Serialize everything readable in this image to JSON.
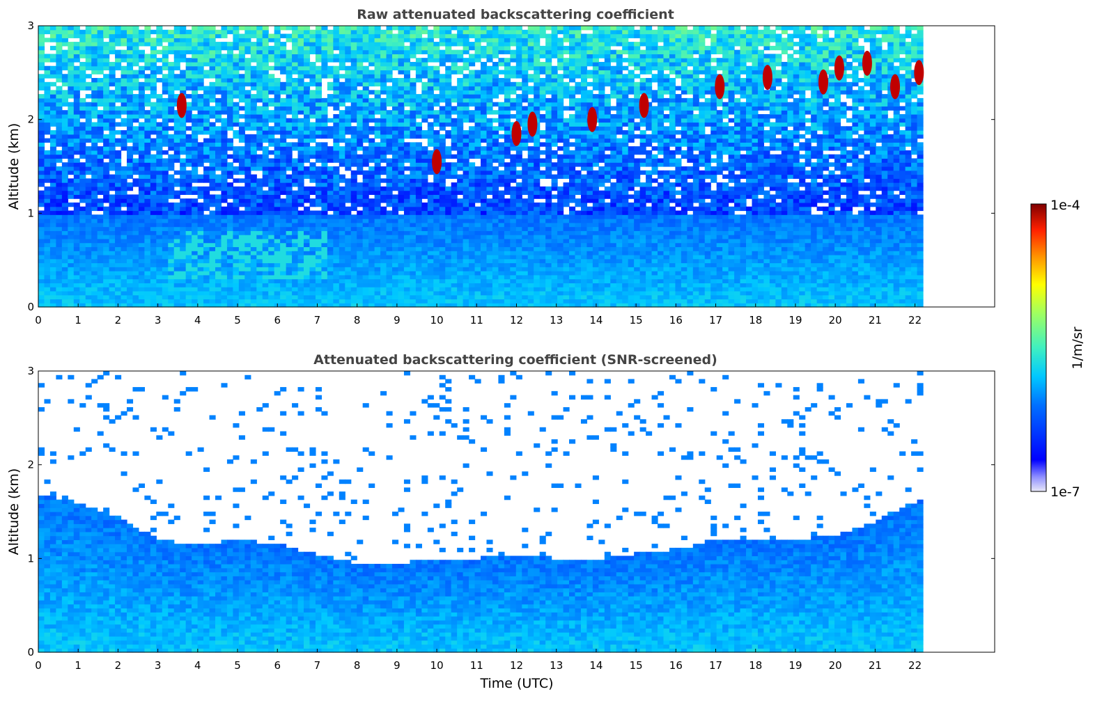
{
  "chart_data": [
    {
      "type": "heatmap",
      "title": "Raw attenuated backscattering coefficient",
      "xlabel": "",
      "ylabel": "Altitude (km)",
      "xlim": [
        0,
        24
      ],
      "ylim": [
        0,
        3
      ],
      "data_extent_hours": [
        0,
        22.2
      ],
      "xticks": [
        "0",
        "1",
        "2",
        "3",
        "4",
        "5",
        "6",
        "7",
        "8",
        "9",
        "10",
        "11",
        "12",
        "13",
        "14",
        "15",
        "16",
        "17",
        "18",
        "19",
        "20",
        "21",
        "22"
      ],
      "yticks": [
        "0",
        "1",
        "2",
        "3"
      ],
      "colormap": "jet",
      "color_scale": "log",
      "clim": [
        "1e-7",
        "1e-4"
      ],
      "features": {
        "boundary_layer_top_km": 1.0,
        "aerosol_plume": {
          "time_range_hours": [
            3.2,
            7.2
          ],
          "altitude_range_km": [
            0.3,
            0.8
          ]
        },
        "clouds": [
          {
            "time": 3.6,
            "alt": 2.15
          },
          {
            "time": 10.0,
            "alt": 1.55
          },
          {
            "time": 12.0,
            "alt": 1.85
          },
          {
            "time": 12.4,
            "alt": 1.95
          },
          {
            "time": 13.9,
            "alt": 2.0
          },
          {
            "time": 15.2,
            "alt": 2.15
          },
          {
            "time": 17.1,
            "alt": 2.35
          },
          {
            "time": 18.3,
            "alt": 2.45
          },
          {
            "time": 19.7,
            "alt": 2.4
          },
          {
            "time": 20.1,
            "alt": 2.55
          },
          {
            "time": 20.8,
            "alt": 2.6
          },
          {
            "time": 21.5,
            "alt": 2.35
          },
          {
            "time": 22.1,
            "alt": 2.5
          }
        ]
      }
    },
    {
      "type": "heatmap",
      "title": "Attenuated backscattering coefficient (SNR-screened)",
      "xlabel": "Time (UTC)",
      "ylabel": "Altitude (km)",
      "xlim": [
        0,
        24
      ],
      "ylim": [
        0,
        3
      ],
      "data_extent_hours": [
        0,
        22.2
      ],
      "xticks": [
        "0",
        "1",
        "2",
        "3",
        "4",
        "5",
        "6",
        "7",
        "8",
        "9",
        "10",
        "11",
        "12",
        "13",
        "14",
        "15",
        "16",
        "17",
        "18",
        "19",
        "20",
        "21",
        "22"
      ],
      "yticks": [
        "0",
        "1",
        "2",
        "3"
      ],
      "colormap": "jet",
      "color_scale": "log",
      "clim": [
        "1e-7",
        "1e-4"
      ],
      "features": {
        "boundary_layer_top_km": [
          {
            "time": 0,
            "alt": 1.7
          },
          {
            "time": 1,
            "alt": 1.6
          },
          {
            "time": 2,
            "alt": 1.45
          },
          {
            "time": 3,
            "alt": 1.2
          },
          {
            "time": 4,
            "alt": 1.15
          },
          {
            "time": 5,
            "alt": 1.2
          },
          {
            "time": 6,
            "alt": 1.15
          },
          {
            "time": 7,
            "alt": 1.05
          },
          {
            "time": 8,
            "alt": 0.95
          },
          {
            "time": 9,
            "alt": 0.95
          },
          {
            "time": 10,
            "alt": 1.0
          },
          {
            "time": 11,
            "alt": 1.0
          },
          {
            "time": 12,
            "alt": 1.05
          },
          {
            "time": 13,
            "alt": 1.0
          },
          {
            "time": 14,
            "alt": 1.0
          },
          {
            "time": 15,
            "alt": 1.05
          },
          {
            "time": 16,
            "alt": 1.1
          },
          {
            "time": 17,
            "alt": 1.2
          },
          {
            "time": 18,
            "alt": 1.2
          },
          {
            "time": 19,
            "alt": 1.2
          },
          {
            "time": 20,
            "alt": 1.25
          },
          {
            "time": 21,
            "alt": 1.4
          },
          {
            "time": 22.2,
            "alt": 1.65
          }
        ]
      }
    }
  ],
  "colorbar": {
    "label": "1/m/sr",
    "max_label": "1e-4",
    "min_label": "1e-7"
  }
}
